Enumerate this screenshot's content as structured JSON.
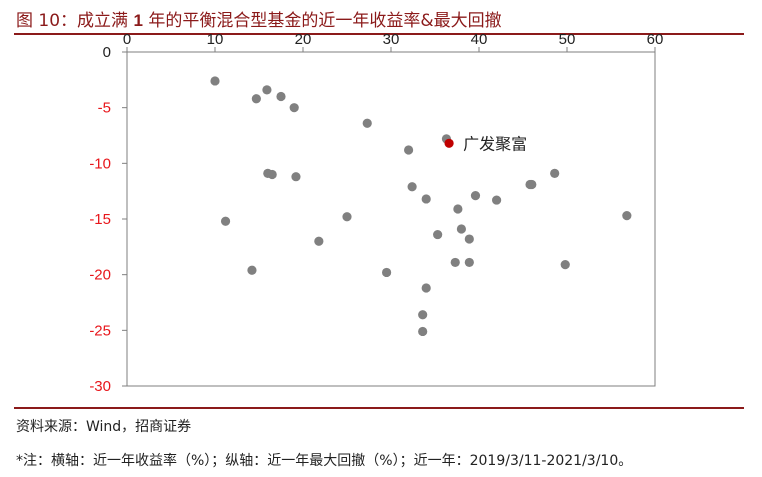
{
  "header": {
    "fig_label": "图 10",
    "title_part1": "：成立满 ",
    "title_bold": "1",
    "title_part2": " 年的平衡混合型基金的近一年收益率&最大回撤"
  },
  "footer": {
    "source": "资料来源：Wind，招商证券",
    "note": "*注：横轴：近一年收益率（%）；纵轴：近一年最大回撤（%）；近一年：2019/3/11-2021/3/10。"
  },
  "colors": {
    "accent": "#8b1a1a",
    "point": "#808080",
    "highlight": "#c00000",
    "negative_tick": "#e8161b"
  },
  "chart_data": {
    "type": "scatter",
    "title": "",
    "xlabel": "",
    "ylabel": "",
    "xlim": [
      0,
      60
    ],
    "ylim": [
      -30,
      0
    ],
    "x_ticks": [
      0,
      10,
      20,
      30,
      40,
      50,
      60
    ],
    "y_ticks": [
      0,
      -5,
      -10,
      -15,
      -20,
      -25,
      -30
    ],
    "x_axis_position": "top",
    "grid": false,
    "legend": "none",
    "points": [
      {
        "x": 10.0,
        "y": -2.6
      },
      {
        "x": 11.2,
        "y": -15.2
      },
      {
        "x": 14.2,
        "y": -19.6
      },
      {
        "x": 14.7,
        "y": -4.2
      },
      {
        "x": 15.9,
        "y": -3.4
      },
      {
        "x": 16.0,
        "y": -10.9
      },
      {
        "x": 16.5,
        "y": -11.0
      },
      {
        "x": 17.5,
        "y": -4.0
      },
      {
        "x": 19.0,
        "y": -5.0
      },
      {
        "x": 19.2,
        "y": -11.2
      },
      {
        "x": 21.8,
        "y": -17.0
      },
      {
        "x": 25.0,
        "y": -14.8
      },
      {
        "x": 27.3,
        "y": -6.4
      },
      {
        "x": 29.5,
        "y": -19.8
      },
      {
        "x": 32.0,
        "y": -8.8
      },
      {
        "x": 32.4,
        "y": -12.1
      },
      {
        "x": 33.6,
        "y": -23.6
      },
      {
        "x": 33.6,
        "y": -25.1
      },
      {
        "x": 34.0,
        "y": -13.2
      },
      {
        "x": 34.0,
        "y": -21.2
      },
      {
        "x": 35.3,
        "y": -16.4
      },
      {
        "x": 36.3,
        "y": -7.8
      },
      {
        "x": 37.3,
        "y": -18.9
      },
      {
        "x": 37.6,
        "y": -14.1
      },
      {
        "x": 38.0,
        "y": -15.9
      },
      {
        "x": 38.9,
        "y": -16.8
      },
      {
        "x": 38.9,
        "y": -18.9
      },
      {
        "x": 39.6,
        "y": -12.9
      },
      {
        "x": 42.0,
        "y": -13.3
      },
      {
        "x": 45.8,
        "y": -11.9
      },
      {
        "x": 46.0,
        "y": -11.9
      },
      {
        "x": 48.6,
        "y": -10.9
      },
      {
        "x": 49.8,
        "y": -19.1
      },
      {
        "x": 56.8,
        "y": -14.7
      }
    ],
    "highlight": {
      "x": 36.6,
      "y": -8.2,
      "label": "广发聚富"
    }
  }
}
